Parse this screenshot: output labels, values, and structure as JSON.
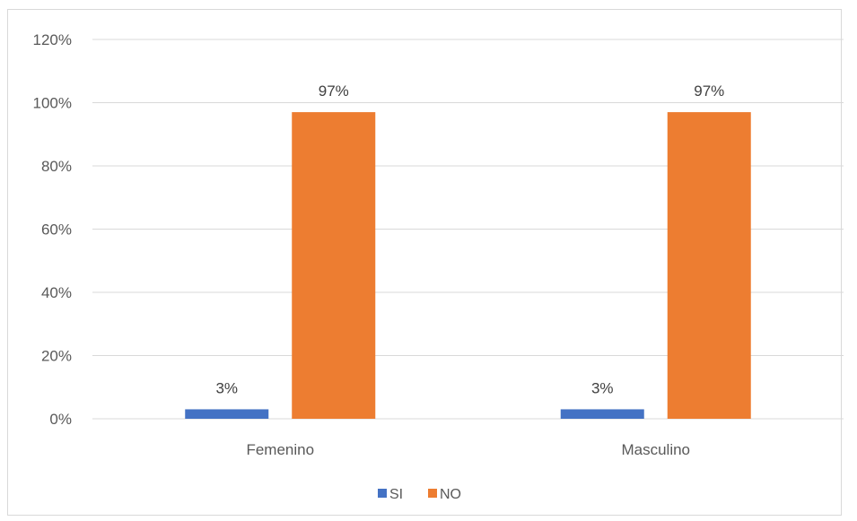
{
  "chart_data": {
    "type": "bar",
    "categories": [
      "Femenino",
      "Masculino"
    ],
    "series": [
      {
        "name": "SI",
        "values": [
          3,
          3
        ],
        "labels": [
          "3%",
          "3%"
        ],
        "color": "#4472C4"
      },
      {
        "name": "NO",
        "values": [
          97,
          97
        ],
        "labels": [
          "97%",
          "97%"
        ],
        "color": "#ED7D31"
      }
    ],
    "ylim": [
      0,
      120
    ],
    "yticks": [
      0,
      20,
      40,
      60,
      80,
      100,
      120
    ],
    "ytick_labels": [
      "0%",
      "20%",
      "40%",
      "60%",
      "80%",
      "100%",
      "120%"
    ],
    "grid": true,
    "legend": "bottom",
    "gridline_color": "#d9d9d9"
  }
}
